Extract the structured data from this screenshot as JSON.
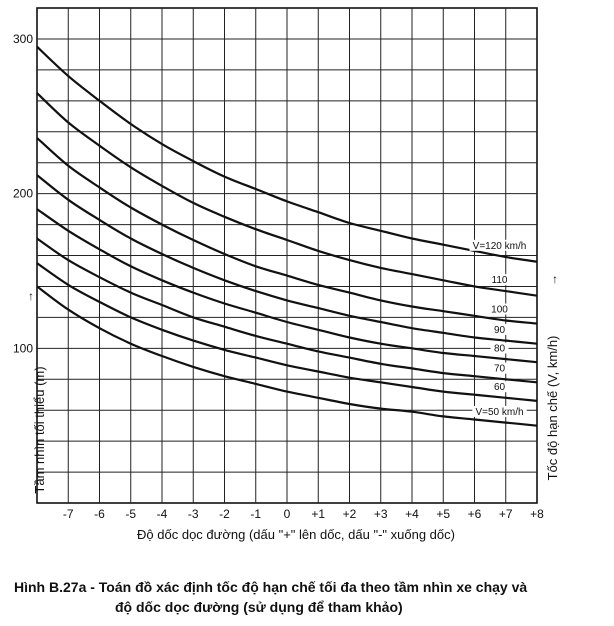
{
  "chart_data": {
    "type": "line",
    "x": [
      -8,
      -7,
      -6,
      -5,
      -4,
      -3,
      -2,
      -1,
      0,
      1,
      2,
      3,
      4,
      5,
      6,
      7,
      8
    ],
    "x_tick_labels": [
      "-7",
      "-6",
      "-5",
      "-4",
      "-3",
      "-2",
      "-1",
      "0",
      "+1",
      "+2",
      "+3",
      "+4",
      "+5",
      "+6",
      "+7",
      "+8"
    ],
    "x_tick_values": [
      -7,
      -6,
      -5,
      -4,
      -3,
      -2,
      -1,
      0,
      1,
      2,
      3,
      4,
      5,
      6,
      7,
      8
    ],
    "y_tick_labels": [
      "100",
      "200",
      "300"
    ],
    "y_tick_values": [
      100,
      200,
      300
    ],
    "xlim": [
      -8,
      8
    ],
    "ylim": [
      0,
      320
    ],
    "x_grid_step": 1,
    "y_grid_step": 20,
    "grid": true,
    "xlabel": "Độ dốc dọc đường (dấu \"+\" lên dốc, dấu \"-\" xuống dốc)",
    "ylabel": "Tầm nhìn tối thiểu (m)",
    "ylabel_right": "Tốc độ hạn chế (V, km/h)",
    "arrow_left": "↑",
    "arrow_right": "↑",
    "caption_line1": "Hình B.27a - Toán đồ xác định tốc độ hạn chế tối đa theo tầm nhìn xe chạy và",
    "caption_line2": "độ dốc dọc đường (sử dụng để tham khảo)",
    "series": [
      {
        "name": "V=120 km/h",
        "values": [
          295,
          276,
          260,
          245,
          232,
          221,
          211,
          203,
          195,
          188,
          181,
          176,
          171,
          167,
          163,
          159,
          156
        ]
      },
      {
        "name": "110",
        "values": [
          265,
          246,
          231,
          217,
          205,
          194,
          185,
          177,
          170,
          163,
          157,
          152,
          148,
          144,
          140,
          137,
          134
        ]
      },
      {
        "name": "100",
        "values": [
          236,
          218,
          204,
          191,
          180,
          170,
          161,
          153,
          147,
          141,
          136,
          131,
          127,
          124,
          121,
          118,
          116
        ]
      },
      {
        "name": "90",
        "values": [
          212,
          196,
          183,
          171,
          161,
          152,
          144,
          137,
          131,
          126,
          121,
          117,
          113,
          110,
          107,
          105,
          103
        ]
      },
      {
        "name": "80",
        "values": [
          190,
          176,
          164,
          153,
          144,
          136,
          129,
          123,
          117,
          112,
          107,
          103,
          100,
          97,
          95,
          93,
          91
        ]
      },
      {
        "name": "70",
        "values": [
          171,
          157,
          146,
          136,
          128,
          120,
          114,
          108,
          103,
          98,
          94,
          90,
          87,
          84,
          82,
          80,
          78
        ]
      },
      {
        "name": "60",
        "values": [
          155,
          141,
          130,
          120,
          112,
          105,
          99,
          94,
          89,
          85,
          81,
          78,
          75,
          72,
          70,
          68,
          66
        ]
      },
      {
        "name": "V=50 km/h",
        "values": [
          140,
          125,
          113,
          103,
          95,
          88,
          82,
          77,
          72,
          68,
          64,
          61,
          59,
          56,
          54,
          52,
          50
        ]
      }
    ]
  }
}
